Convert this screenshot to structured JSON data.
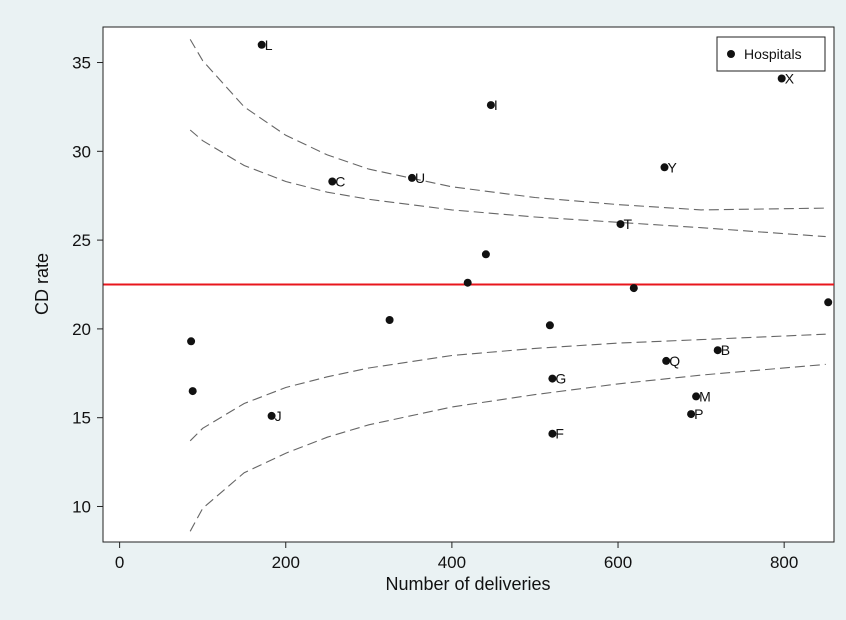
{
  "chart_data": {
    "type": "scatter",
    "xlabel": "Number of deliveries",
    "ylabel": "CD rate",
    "xlim": [
      -20,
      860
    ],
    "ylim": [
      8,
      37
    ],
    "xticks": [
      0,
      200,
      400,
      600,
      800
    ],
    "yticks": [
      10,
      15,
      20,
      25,
      30,
      35
    ],
    "grid": false,
    "legend": {
      "position": "top-right",
      "entries": [
        "Hospitals"
      ]
    },
    "colors": {
      "outer_background": "#eaf2f3",
      "plot_background": "#ffffff",
      "points": "#111111",
      "mean_line": "#e8161c",
      "limits": "#666666"
    },
    "mean_line": 22.5,
    "series": [
      {
        "name": "Hospitals",
        "points": [
          {
            "x": 171,
            "y": 36.0,
            "label": "L"
          },
          {
            "x": 447,
            "y": 32.6,
            "label": "I"
          },
          {
            "x": 797,
            "y": 34.1,
            "label": "X"
          },
          {
            "x": 256,
            "y": 28.3,
            "label": "C"
          },
          {
            "x": 352,
            "y": 28.5,
            "label": "U"
          },
          {
            "x": 656,
            "y": 29.1,
            "label": "Y"
          },
          {
            "x": 603,
            "y": 25.9,
            "label": "T"
          },
          {
            "x": 441,
            "y": 24.2,
            "label": ""
          },
          {
            "x": 419,
            "y": 22.6,
            "label": ""
          },
          {
            "x": 619,
            "y": 22.3,
            "label": ""
          },
          {
            "x": 853,
            "y": 21.5,
            "label": ""
          },
          {
            "x": 325,
            "y": 20.5,
            "label": ""
          },
          {
            "x": 518,
            "y": 20.2,
            "label": ""
          },
          {
            "x": 86,
            "y": 19.3,
            "label": ""
          },
          {
            "x": 88,
            "y": 16.5,
            "label": ""
          },
          {
            "x": 720,
            "y": 18.8,
            "label": "B"
          },
          {
            "x": 658,
            "y": 18.2,
            "label": "Q"
          },
          {
            "x": 521,
            "y": 17.2,
            "label": "G"
          },
          {
            "x": 694,
            "y": 16.2,
            "label": "M"
          },
          {
            "x": 688,
            "y": 15.2,
            "label": "P"
          },
          {
            "x": 183,
            "y": 15.1,
            "label": "J"
          },
          {
            "x": 521,
            "y": 14.1,
            "label": "F"
          }
        ]
      }
    ],
    "control_limits": [
      {
        "points": [
          [
            85,
            36.3
          ],
          [
            100,
            35.1
          ],
          [
            150,
            32.5
          ],
          [
            200,
            30.9
          ],
          [
            250,
            29.8
          ],
          [
            300,
            29.0
          ],
          [
            400,
            28.0
          ],
          [
            500,
            27.4
          ],
          [
            600,
            27.0
          ],
          [
            700,
            26.7
          ],
          [
            850,
            26.8
          ]
        ]
      },
      {
        "points": [
          [
            85,
            31.2
          ],
          [
            100,
            30.6
          ],
          [
            150,
            29.2
          ],
          [
            200,
            28.3
          ],
          [
            250,
            27.7
          ],
          [
            300,
            27.3
          ],
          [
            400,
            26.7
          ],
          [
            500,
            26.3
          ],
          [
            600,
            26.0
          ],
          [
            700,
            25.7
          ],
          [
            850,
            25.2
          ]
        ]
      },
      {
        "points": [
          [
            85,
            13.7
          ],
          [
            100,
            14.4
          ],
          [
            150,
            15.8
          ],
          [
            200,
            16.7
          ],
          [
            250,
            17.3
          ],
          [
            300,
            17.8
          ],
          [
            400,
            18.5
          ],
          [
            500,
            18.9
          ],
          [
            600,
            19.2
          ],
          [
            700,
            19.4
          ],
          [
            850,
            19.7
          ]
        ]
      },
      {
        "points": [
          [
            85,
            8.6
          ],
          [
            100,
            9.9
          ],
          [
            150,
            11.9
          ],
          [
            200,
            13.0
          ],
          [
            250,
            13.9
          ],
          [
            300,
            14.6
          ],
          [
            400,
            15.6
          ],
          [
            500,
            16.3
          ],
          [
            600,
            16.9
          ],
          [
            700,
            17.4
          ],
          [
            850,
            18.0
          ]
        ]
      }
    ]
  }
}
